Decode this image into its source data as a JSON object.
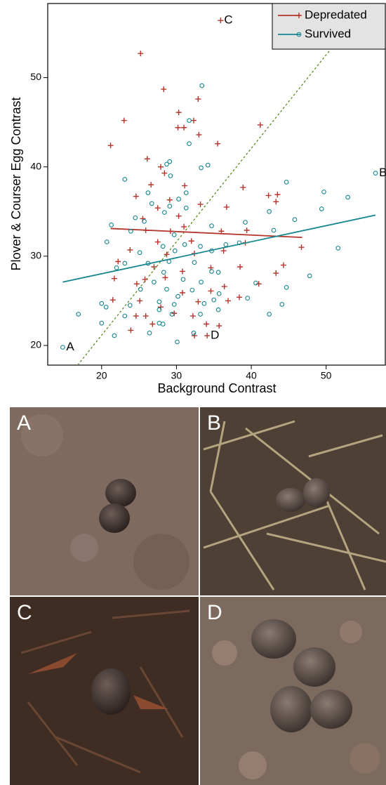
{
  "chart_data": {
    "type": "scatter",
    "x_label": "Background Contrast",
    "y_label": "Plover & Courser Egg Contrast",
    "xlim": [
      12.8,
      58
    ],
    "ylim": [
      17.8,
      58.3
    ],
    "xticks": [
      20,
      30,
      40,
      50
    ],
    "yticks": [
      20,
      30,
      40,
      50
    ],
    "legend": "top-right",
    "series": [
      {
        "name": "Depredated",
        "color": "#b5342b",
        "marker": "+",
        "x": [
          35.9,
          25.2,
          28.3,
          32.9,
          30.3,
          23.0,
          41.2,
          30.2,
          31.0,
          32.3,
          33.0,
          35.5,
          21.2,
          26.1,
          27.9,
          28.4,
          38.9,
          26.6,
          31.1,
          42.3,
          43.5,
          43.3,
          36.7,
          27.5,
          24.6,
          29.1,
          33.2,
          30.3,
          25.5,
          31.0,
          36.0,
          39.4,
          25.9,
          29.2,
          27.5,
          32.0,
          23.8,
          36.3,
          39.2,
          46.7,
          28.7,
          32.4,
          27.0,
          22.2,
          34.6,
          38.5,
          30.8,
          43.3,
          44.3,
          21.7,
          25.8,
          28.5,
          24.7,
          36.4,
          41.0,
          34.6,
          30.8,
          38.4,
          36.9,
          32.9,
          27.9,
          25.9,
          29.7,
          24.6,
          32.2,
          26.8,
          34.0,
          23.9,
          35.7,
          32.4,
          34.1,
          21.5,
          25.1
        ],
        "values": [
          56.4,
          52.7,
          48.7,
          47.6,
          46.1,
          45.2,
          44.7,
          44.4,
          44.4,
          45.2,
          43.6,
          42.6,
          42.4,
          40.9,
          40.0,
          39.3,
          37.7,
          38.0,
          37.9,
          36.8,
          36.9,
          36.1,
          35.5,
          35.4,
          36.7,
          36.3,
          35.8,
          34.5,
          34.2,
          33.3,
          32.8,
          32.9,
          32.9,
          32.8,
          31.6,
          31.7,
          30.7,
          30.6,
          31.5,
          31.0,
          30.2,
          30.3,
          28.8,
          29.4,
          28.7,
          28.8,
          28.3,
          28.1,
          29.0,
          27.5,
          27.4,
          27.6,
          26.9,
          26.6,
          26.9,
          26.1,
          25.9,
          25.4,
          25.0,
          24.9,
          24.3,
          23.3,
          23.6,
          23.3,
          23.3,
          22.4,
          22.4,
          21.7,
          22.2,
          21.1,
          21.1,
          25.1,
          25.0
        ],
        "fit": {
          "x": [
            21.2,
            46.8
          ],
          "y": [
            33.1,
            32.1
          ]
        }
      },
      {
        "name": "Survived",
        "color": "#16868f",
        "marker": "o",
        "x": [
          14.8,
          56.6,
          33.4,
          31.7,
          31.7,
          33.3,
          34.2,
          29.1,
          28.7,
          23.1,
          29.2,
          44.7,
          49.7,
          52.9,
          26.2,
          31.3,
          30.3,
          26.7,
          29.1,
          42.4,
          49.4,
          24.5,
          28.4,
          31.3,
          25.7,
          34.7,
          21.3,
          23.9,
          29.7,
          43.0,
          45.8,
          39.2,
          20.7,
          28.2,
          31.1,
          33.2,
          36.6,
          38.4,
          51.6,
          25.1,
          29.8,
          34.7,
          26.2,
          29.0,
          32.4,
          34.7,
          35.6,
          22.0,
          23.1,
          28.3,
          30.9,
          27.0,
          33.3,
          40.6,
          44.7,
          47.8,
          25.2,
          28.7,
          30.2,
          32.1,
          35.7,
          39.5,
          35.0,
          20.0,
          23.8,
          29.7,
          33.7,
          20.6,
          35.6,
          44.1,
          16.9,
          23.1,
          29.4,
          33.2,
          42.4,
          20.0,
          27.7,
          28.2,
          26.4,
          21.7,
          32.3,
          30.1,
          27.7,
          27.7
        ],
        "values": [
          19.8,
          39.3,
          49.1,
          45.2,
          42.6,
          39.9,
          40.2,
          40.6,
          40.3,
          38.6,
          39.0,
          38.3,
          37.2,
          36.6,
          37.1,
          37.1,
          36.4,
          35.9,
          35.6,
          35.0,
          35.3,
          34.3,
          34.9,
          35.4,
          33.9,
          33.4,
          33.5,
          32.8,
          32.4,
          32.9,
          34.1,
          33.8,
          31.6,
          31.1,
          31.3,
          31.1,
          31.3,
          31.5,
          30.9,
          30.4,
          30.6,
          30.6,
          29.2,
          29.4,
          29.3,
          28.3,
          28.2,
          28.7,
          29.2,
          28.2,
          27.4,
          27.1,
          27.1,
          27.0,
          26.5,
          27.8,
          26.3,
          26.3,
          25.5,
          26.2,
          25.8,
          25.3,
          25.1,
          24.7,
          24.5,
          24.6,
          24.7,
          24.3,
          24.0,
          24.6,
          23.5,
          23.3,
          23.5,
          23.5,
          23.5,
          22.5,
          22.5,
          22.4,
          21.4,
          21.1,
          21.4,
          20.4,
          24.0,
          24.9
        ],
        "fit": {
          "x": [
            14.8,
            56.6
          ],
          "y": [
            27.1,
            34.6
          ]
        }
      }
    ],
    "reference_line": {
      "color": "#5a8a1e",
      "x": [
        16.8,
        55.5
      ],
      "y": [
        17.8,
        58.3
      ]
    },
    "annotations": [
      {
        "text": "A",
        "x": 14.8,
        "y": 19.8
      },
      {
        "text": "B",
        "x": 56.6,
        "y": 39.3
      },
      {
        "text": "C",
        "x": 35.9,
        "y": 56.4
      },
      {
        "text": "D",
        "x": 34.1,
        "y": 21.1
      }
    ]
  },
  "photos": [
    {
      "label": "A"
    },
    {
      "label": "B"
    },
    {
      "label": "C"
    },
    {
      "label": "D"
    }
  ]
}
